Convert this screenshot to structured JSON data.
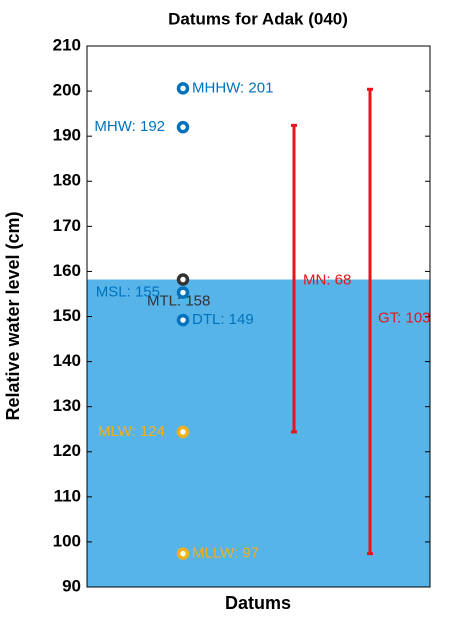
{
  "chart_data": {
    "type": "datums",
    "title": "Datums for Adak (040)",
    "x_label": "Datums",
    "y_label": "Relative water level (cm)",
    "ylim": [
      90,
      210
    ],
    "yticks": [
      90,
      100,
      110,
      120,
      130,
      140,
      150,
      160,
      170,
      180,
      190,
      200,
      210
    ],
    "area": {
      "value": 158.2,
      "color": "#56b4e9"
    },
    "points": [
      {
        "value": 200.6,
        "value_label": "MHHW: 201",
        "color": "#0072bd"
      },
      {
        "value": 192,
        "value_label": "MHW: 192",
        "color": "#0072bd"
      },
      {
        "value": 158.2,
        "value_label": "MTL: 158",
        "color": "#333333"
      },
      {
        "value": 155.3,
        "value_label": "MSL: 155",
        "color": "#0072bd"
      },
      {
        "value": 149.2,
        "value_label": "DTL: 149",
        "color": "#0072bd"
      },
      {
        "value": 124.4,
        "value_label": "MLW: 124",
        "color": "#edb120"
      },
      {
        "value": 97.4,
        "value_label": "MLLW: 97",
        "color": "#edb120"
      }
    ],
    "ranges": [
      {
        "low": 124.4,
        "value": 68,
        "value_label": "MN: 68",
        "color": "#e8131b"
      },
      {
        "low": 97.4,
        "value": 103,
        "value_label": "GT: 103",
        "color": "#e8131b"
      }
    ]
  }
}
